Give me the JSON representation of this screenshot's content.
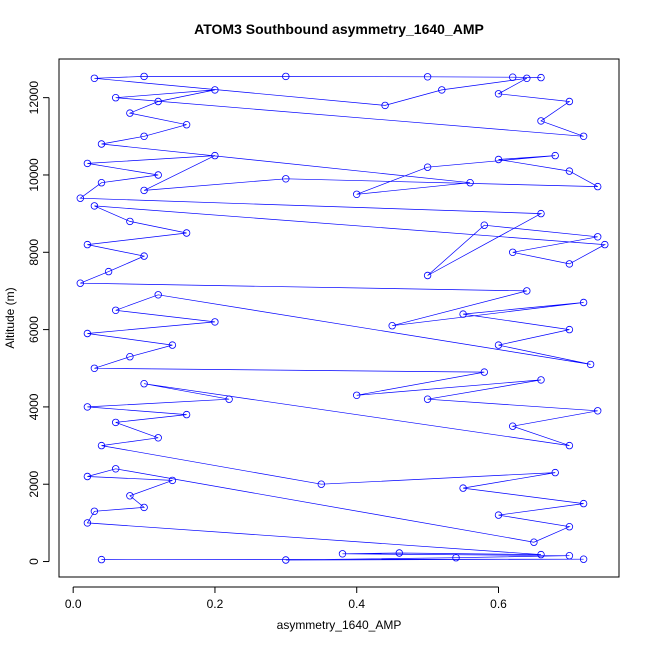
{
  "chart_data": {
    "type": "scatter",
    "title": "ATOM3 Southbound asymmetry_1640_AMP",
    "xlabel": "asymmetry_1640_AMP",
    "ylabel": "Altitude (m)",
    "xlim": [
      -0.02,
      0.77
    ],
    "ylim": [
      -400,
      13000
    ],
    "x_ticks": [
      "0.0",
      "0.2",
      "0.4",
      "0.6"
    ],
    "x_tick_values": [
      0.0,
      0.2,
      0.4,
      0.6
    ],
    "y_ticks": [
      "0",
      "2000",
      "4000",
      "6000",
      "8000",
      "10000",
      "12000"
    ],
    "y_tick_values": [
      0,
      2000,
      4000,
      6000,
      8000,
      10000,
      12000
    ],
    "grid": false,
    "legend": "none",
    "series_color": "#0000ff",
    "markers": "open-circle",
    "connected": true,
    "x_range_of_data": [
      0.01,
      0.75
    ],
    "y_range_of_data": [
      30,
      12600
    ],
    "points": [
      [
        0.04,
        50
      ],
      [
        0.72,
        60
      ],
      [
        0.3,
        40
      ],
      [
        0.54,
        100
      ],
      [
        0.7,
        150
      ],
      [
        0.38,
        200
      ],
      [
        0.46,
        220
      ],
      [
        0.66,
        180
      ],
      [
        0.02,
        1000
      ],
      [
        0.03,
        1300
      ],
      [
        0.1,
        1400
      ],
      [
        0.08,
        1700
      ],
      [
        0.14,
        2100
      ],
      [
        0.02,
        2200
      ],
      [
        0.06,
        2400
      ],
      [
        0.65,
        500
      ],
      [
        0.7,
        900
      ],
      [
        0.6,
        1200
      ],
      [
        0.72,
        1500
      ],
      [
        0.55,
        1900
      ],
      [
        0.68,
        2300
      ],
      [
        0.35,
        2000
      ],
      [
        0.04,
        3000
      ],
      [
        0.12,
        3200
      ],
      [
        0.06,
        3600
      ],
      [
        0.16,
        3800
      ],
      [
        0.02,
        4000
      ],
      [
        0.22,
        4200
      ],
      [
        0.1,
        4600
      ],
      [
        0.7,
        3000
      ],
      [
        0.62,
        3500
      ],
      [
        0.74,
        3900
      ],
      [
        0.5,
        4200
      ],
      [
        0.66,
        4700
      ],
      [
        0.4,
        4300
      ],
      [
        0.58,
        4900
      ],
      [
        0.03,
        5000
      ],
      [
        0.08,
        5300
      ],
      [
        0.14,
        5600
      ],
      [
        0.02,
        5900
      ],
      [
        0.2,
        6200
      ],
      [
        0.06,
        6500
      ],
      [
        0.12,
        6900
      ],
      [
        0.73,
        5100
      ],
      [
        0.6,
        5600
      ],
      [
        0.7,
        6000
      ],
      [
        0.55,
        6400
      ],
      [
        0.72,
        6700
      ],
      [
        0.45,
        6100
      ],
      [
        0.64,
        7000
      ],
      [
        0.01,
        7200
      ],
      [
        0.05,
        7500
      ],
      [
        0.1,
        7900
      ],
      [
        0.02,
        8200
      ],
      [
        0.16,
        8500
      ],
      [
        0.08,
        8800
      ],
      [
        0.03,
        9200
      ],
      [
        0.75,
        8200
      ],
      [
        0.7,
        7700
      ],
      [
        0.62,
        8000
      ],
      [
        0.74,
        8400
      ],
      [
        0.58,
        8700
      ],
      [
        0.5,
        7400
      ],
      [
        0.66,
        9000
      ],
      [
        0.01,
        9400
      ],
      [
        0.04,
        9800
      ],
      [
        0.12,
        10000
      ],
      [
        0.02,
        10300
      ],
      [
        0.2,
        10500
      ],
      [
        0.1,
        9600
      ],
      [
        0.3,
        9900
      ],
      [
        0.74,
        9700
      ],
      [
        0.7,
        10100
      ],
      [
        0.6,
        10400
      ],
      [
        0.68,
        10500
      ],
      [
        0.5,
        10200
      ],
      [
        0.4,
        9500
      ],
      [
        0.56,
        9800
      ],
      [
        0.04,
        10800
      ],
      [
        0.1,
        11000
      ],
      [
        0.16,
        11300
      ],
      [
        0.08,
        11600
      ],
      [
        0.12,
        11900
      ],
      [
        0.2,
        12200
      ],
      [
        0.06,
        12000
      ],
      [
        0.72,
        11000
      ],
      [
        0.66,
        11400
      ],
      [
        0.7,
        11900
      ],
      [
        0.6,
        12100
      ],
      [
        0.64,
        12500
      ],
      [
        0.52,
        12200
      ],
      [
        0.44,
        11800
      ],
      [
        0.03,
        12500
      ],
      [
        0.1,
        12550
      ],
      [
        0.3,
        12550
      ],
      [
        0.5,
        12540
      ],
      [
        0.62,
        12530
      ],
      [
        0.66,
        12520
      ]
    ]
  }
}
